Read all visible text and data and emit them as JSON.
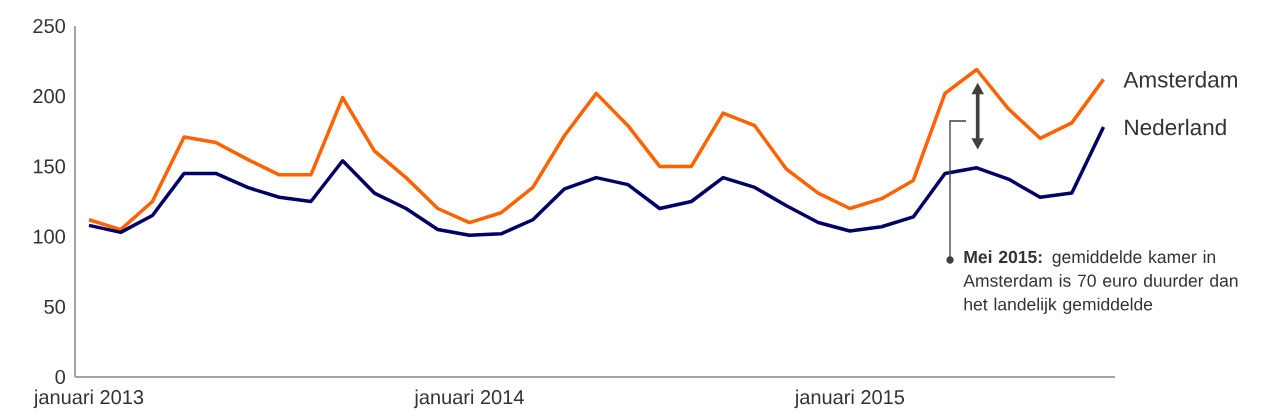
{
  "chart_data": {
    "type": "line",
    "x": [
      "2013-01",
      "2013-02",
      "2013-03",
      "2013-04",
      "2013-05",
      "2013-06",
      "2013-07",
      "2013-08",
      "2013-09",
      "2013-10",
      "2013-11",
      "2013-12",
      "2014-01",
      "2014-02",
      "2014-03",
      "2014-04",
      "2014-05",
      "2014-06",
      "2014-07",
      "2014-08",
      "2014-09",
      "2014-10",
      "2014-11",
      "2014-12",
      "2015-01",
      "2015-02",
      "2015-03",
      "2015-04",
      "2015-05",
      "2015-06",
      "2015-07",
      "2015-08",
      "2015-09"
    ],
    "series": [
      {
        "name": "Amsterdam",
        "color": "#ff6200",
        "values": [
          112,
          105,
          125,
          171,
          167,
          155,
          144,
          144,
          199,
          161,
          142,
          120,
          110,
          117,
          135,
          172,
          202,
          179,
          150,
          150,
          188,
          179,
          148,
          131,
          120,
          127,
          140,
          202,
          219,
          191,
          170,
          181,
          212
        ]
      },
      {
        "name": "Nederland",
        "color": "#000066",
        "values": [
          108,
          103,
          115,
          145,
          145,
          135,
          128,
          125,
          154,
          131,
          120,
          105,
          101,
          102,
          112,
          134,
          142,
          137,
          120,
          125,
          142,
          135,
          122,
          110,
          104,
          107,
          114,
          145,
          149,
          141,
          128,
          131,
          178
        ]
      }
    ],
    "xlim": [
      "2012-12-18",
      "2015-09-12"
    ],
    "xticks": [
      {
        "value": "2013-01",
        "label": "januari 2013"
      },
      {
        "value": "2014-01",
        "label": "januari 2014"
      },
      {
        "value": "2015-01",
        "label": "januari 2015"
      }
    ],
    "ylim": [
      0,
      250
    ],
    "yticks": [
      0,
      50,
      100,
      150,
      200,
      250
    ],
    "marker": "none",
    "annotations": [
      "**Mei 2015:** gemiddelde kamer in Amsterdam is 70 euro duurder dan het landelijk gemiddelde"
    ]
  }
}
